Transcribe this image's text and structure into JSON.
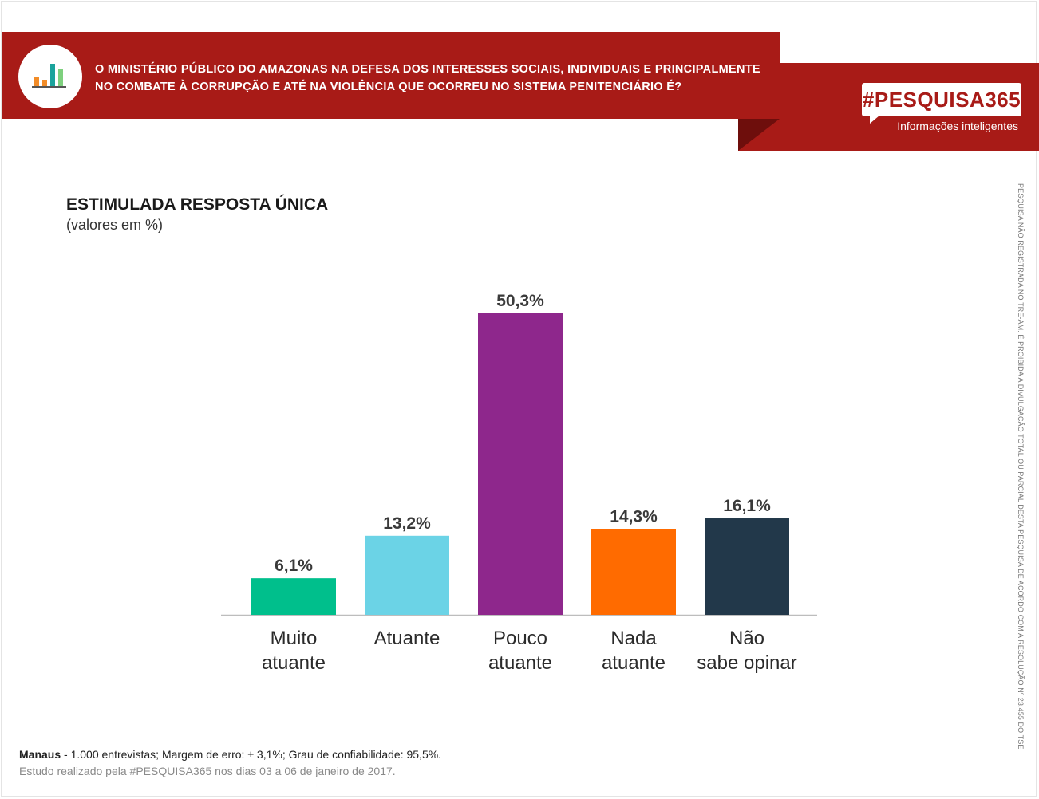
{
  "header": {
    "question_line1": "O MINISTÉRIO PÚBLICO DO AMAZONAS NA DEFESA DOS INTERESSES SOCIAIS, INDIVIDUAIS E PRINCIPALMENTE",
    "question_line2": "NO COMBATE À CORRUPÇÃO E ATÉ NA VIOLÊNCIA QUE OCORREU NO SISTEMA PENITENCIÁRIO É?",
    "icon": "bar-chart-icon",
    "brand": "#PESQUISA365",
    "brand_tagline": "Informações inteligentes",
    "colors": {
      "banner": "#a81b17",
      "banner_shadow": "#6e0e0c"
    }
  },
  "side_note": "PESQUISA NÃO REGISTRADA NO TRE-AM. É PROIBIDA A DIVULGAÇÃO TOTAL OU PARCIAL DESTA PESQUISA DE ACORDO COM A RESOLUÇÃO Nº 23.455 DO TSE",
  "chart_data": {
    "type": "bar",
    "title": "ESTIMULADA RESPOSTA ÚNICA",
    "subtitle": "(valores em %)",
    "categories": [
      [
        "Muito",
        "atuante"
      ],
      [
        "Atuante"
      ],
      [
        "Pouco",
        "atuante"
      ],
      [
        "Nada",
        "atuante"
      ],
      [
        "Não",
        "sabe opinar"
      ]
    ],
    "values": [
      6.1,
      13.2,
      50.3,
      14.3,
      16.1
    ],
    "value_labels": [
      "6,1%",
      "13,2%",
      "50,3%",
      "14,3%",
      "16,1%"
    ],
    "colors": [
      "#00bf8c",
      "#6bd3e6",
      "#8e278c",
      "#ff6b00",
      "#22384a"
    ],
    "ylim": [
      0,
      50.3
    ],
    "grid": false,
    "legend": "none"
  },
  "footer": {
    "city": "Manaus",
    "details": " - 1.000 entrevistas; Margem de erro: ± 3,1%; Grau de confiabilidade: 95,5%.",
    "study": "Estudo realizado pela #PESQUISA365 nos dias 03 a 06 de janeiro de 2017."
  }
}
